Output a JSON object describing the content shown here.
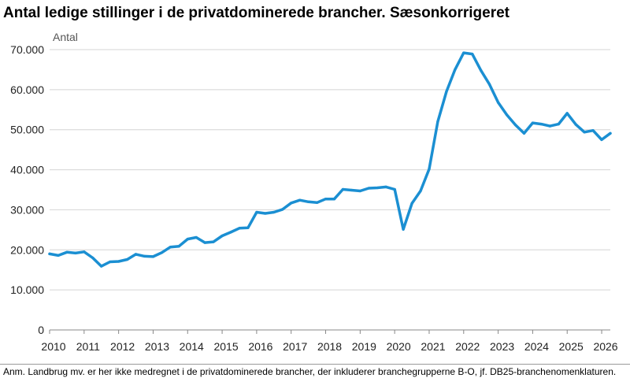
{
  "title": "Antal ledige stillinger i de privatdominerede brancher. Sæsonkorrigeret",
  "note": "Anm. Landbrug mv. er her ikke medregnet i de privatdominerede brancher, der inkluderer branchegrupperne B-O, jf. DB25-branchenomenklaturen.",
  "colors": {
    "line": "#1b8fd2",
    "grid": "#d4d4d4",
    "axis": "#888888"
  },
  "chart_data": {
    "type": "line",
    "title": "Antal ledige stillinger i de privatdominerede brancher. Sæsonkorrigeret",
    "ylabel": "Antal",
    "xlabel": "",
    "ylim": [
      0,
      70000
    ],
    "yticks": [
      0,
      10000,
      20000,
      30000,
      40000,
      50000,
      60000,
      70000
    ],
    "ytick_labels": [
      "0",
      "10.000",
      "20.000",
      "30.000",
      "40.000",
      "50.000",
      "60.000",
      "70.000"
    ],
    "xlim": [
      2010,
      2026.25
    ],
    "xtick_labels": [
      "2010",
      "2011",
      "2012",
      "2013",
      "2014",
      "2015",
      "2016",
      "2017",
      "2018",
      "2019",
      "2020",
      "2021",
      "2022",
      "2023",
      "2024",
      "2025",
      "2026"
    ],
    "grid": true,
    "legend": "none",
    "series": [
      {
        "x": [
          2010.0,
          2010.25,
          2010.5,
          2010.75,
          2011.0,
          2011.25,
          2011.5,
          2011.75,
          2012.0,
          2012.25,
          2012.5,
          2012.75,
          2013.0,
          2013.25,
          2013.5,
          2013.75,
          2014.0,
          2014.25,
          2014.5,
          2014.75,
          2015.0,
          2015.25,
          2015.5,
          2015.75,
          2016.0,
          2016.25,
          2016.5,
          2016.75,
          2017.0,
          2017.25,
          2017.5,
          2017.75,
          2018.0,
          2018.25,
          2018.5,
          2018.75,
          2019.0,
          2019.25,
          2019.5,
          2019.75,
          2020.0,
          2020.25,
          2020.5,
          2020.75,
          2021.0,
          2021.25,
          2021.5,
          2021.75,
          2022.0,
          2022.25,
          2022.5,
          2022.75,
          2023.0,
          2023.25,
          2023.5,
          2023.75,
          2024.0,
          2024.25,
          2024.5,
          2024.75,
          2025.0,
          2025.25,
          2025.5,
          2025.75,
          2026.0,
          2026.25
        ],
        "values": [
          19000,
          18600,
          19400,
          19200,
          19500,
          18000,
          15900,
          17000,
          17100,
          17600,
          18900,
          18400,
          18300,
          19300,
          20700,
          20900,
          22700,
          23100,
          21800,
          22000,
          23500,
          24400,
          25400,
          25500,
          29400,
          29100,
          29400,
          30100,
          31700,
          32400,
          32000,
          31800,
          32700,
          32700,
          35100,
          34900,
          34700,
          35400,
          35500,
          35700,
          35100,
          25100,
          31600,
          34700,
          40200,
          52000,
          59500,
          65000,
          69200,
          68900,
          64800,
          61300,
          56800,
          53700,
          51200,
          49100,
          51700,
          51400,
          50900,
          51400,
          54100,
          51300,
          49400,
          49800,
          47500,
          49100
        ]
      }
    ]
  }
}
